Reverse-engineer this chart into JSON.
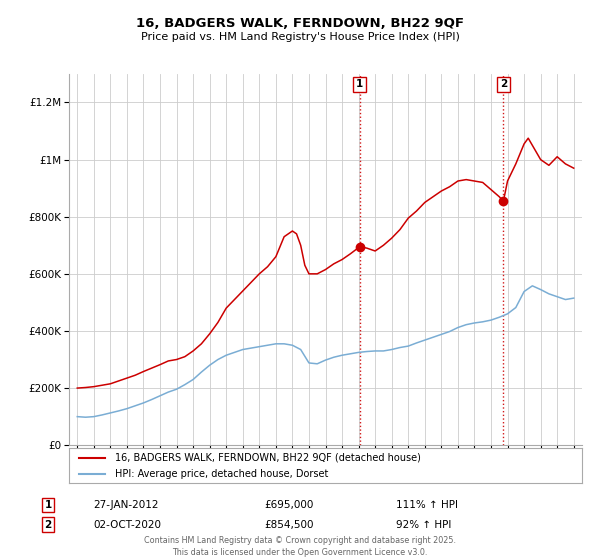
{
  "title": "16, BADGERS WALK, FERNDOWN, BH22 9QF",
  "subtitle": "Price paid vs. HM Land Registry's House Price Index (HPI)",
  "background_color": "#ffffff",
  "grid_color": "#cccccc",
  "red_line_color": "#cc0000",
  "blue_line_color": "#7aadd4",
  "marker1_date_x": 2012.07,
  "marker1_date_label": "27-JAN-2012",
  "marker1_price": 695000,
  "marker1_price_label": "£695,000",
  "marker1_hpi_label": "111% ↑ HPI",
  "marker2_date_x": 2020.75,
  "marker2_date_label": "02-OCT-2020",
  "marker2_price": 854500,
  "marker2_price_label": "£854,500",
  "marker2_hpi_label": "92% ↑ HPI",
  "ylim": [
    0,
    1300000
  ],
  "xlim": [
    1994.5,
    2025.5
  ],
  "yticks": [
    0,
    200000,
    400000,
    600000,
    800000,
    1000000,
    1200000
  ],
  "ytick_labels": [
    "£0",
    "£200K",
    "£400K",
    "£600K",
    "£800K",
    "£1M",
    "£1.2M"
  ],
  "xticks": [
    1995,
    1996,
    1997,
    1998,
    1999,
    2000,
    2001,
    2002,
    2003,
    2004,
    2005,
    2006,
    2007,
    2008,
    2009,
    2010,
    2011,
    2012,
    2013,
    2014,
    2015,
    2016,
    2017,
    2018,
    2019,
    2020,
    2021,
    2022,
    2023,
    2024,
    2025
  ],
  "legend_label_red": "16, BADGERS WALK, FERNDOWN, BH22 9QF (detached house)",
  "legend_label_blue": "HPI: Average price, detached house, Dorset",
  "footer": "Contains HM Land Registry data © Crown copyright and database right 2025.\nThis data is licensed under the Open Government Licence v3.0.",
  "red_x": [
    1995.0,
    1995.5,
    1996.0,
    1996.5,
    1997.0,
    1997.5,
    1998.0,
    1998.5,
    1999.0,
    1999.5,
    2000.0,
    2000.5,
    2001.0,
    2001.5,
    2002.0,
    2002.5,
    2003.0,
    2003.5,
    2004.0,
    2004.5,
    2005.0,
    2005.5,
    2006.0,
    2006.5,
    2007.0,
    2007.5,
    2008.0,
    2008.25,
    2008.5,
    2008.75,
    2009.0,
    2009.5,
    2010.0,
    2010.5,
    2011.0,
    2011.5,
    2012.07,
    2012.5,
    2013.0,
    2013.5,
    2014.0,
    2014.5,
    2015.0,
    2015.5,
    2016.0,
    2016.5,
    2017.0,
    2017.5,
    2018.0,
    2018.5,
    2019.0,
    2019.5,
    2020.0,
    2020.5,
    2020.75,
    2021.0,
    2021.5,
    2022.0,
    2022.25,
    2022.5,
    2023.0,
    2023.5,
    2024.0,
    2024.5,
    2025.0
  ],
  "red_y": [
    200000,
    202000,
    205000,
    210000,
    215000,
    225000,
    235000,
    245000,
    258000,
    270000,
    282000,
    295000,
    300000,
    310000,
    330000,
    355000,
    390000,
    430000,
    480000,
    510000,
    540000,
    570000,
    600000,
    625000,
    660000,
    730000,
    750000,
    740000,
    700000,
    630000,
    600000,
    600000,
    615000,
    635000,
    650000,
    670000,
    695000,
    690000,
    680000,
    700000,
    725000,
    755000,
    795000,
    820000,
    850000,
    870000,
    890000,
    905000,
    925000,
    930000,
    925000,
    920000,
    895000,
    870000,
    854500,
    925000,
    985000,
    1055000,
    1075000,
    1050000,
    1000000,
    980000,
    1010000,
    985000,
    970000
  ],
  "blue_x": [
    1995.0,
    1995.5,
    1996.0,
    1996.5,
    1997.0,
    1997.5,
    1998.0,
    1998.5,
    1999.0,
    1999.5,
    2000.0,
    2000.5,
    2001.0,
    2001.5,
    2002.0,
    2002.5,
    2003.0,
    2003.5,
    2004.0,
    2004.5,
    2005.0,
    2005.5,
    2006.0,
    2006.5,
    2007.0,
    2007.5,
    2008.0,
    2008.5,
    2009.0,
    2009.5,
    2010.0,
    2010.5,
    2011.0,
    2011.5,
    2012.0,
    2012.5,
    2013.0,
    2013.5,
    2014.0,
    2014.5,
    2015.0,
    2015.5,
    2016.0,
    2016.5,
    2017.0,
    2017.5,
    2018.0,
    2018.5,
    2019.0,
    2019.5,
    2020.0,
    2020.5,
    2021.0,
    2021.5,
    2022.0,
    2022.5,
    2023.0,
    2023.5,
    2024.0,
    2024.5,
    2025.0
  ],
  "blue_y": [
    100000,
    98000,
    100000,
    106000,
    113000,
    120000,
    128000,
    138000,
    148000,
    160000,
    173000,
    186000,
    196000,
    212000,
    230000,
    256000,
    280000,
    300000,
    315000,
    325000,
    335000,
    340000,
    345000,
    350000,
    355000,
    355000,
    350000,
    335000,
    288000,
    285000,
    298000,
    308000,
    315000,
    320000,
    325000,
    328000,
    330000,
    330000,
    335000,
    342000,
    347000,
    358000,
    368000,
    378000,
    388000,
    398000,
    412000,
    422000,
    428000,
    432000,
    438000,
    448000,
    460000,
    482000,
    538000,
    558000,
    545000,
    530000,
    520000,
    510000,
    515000
  ]
}
